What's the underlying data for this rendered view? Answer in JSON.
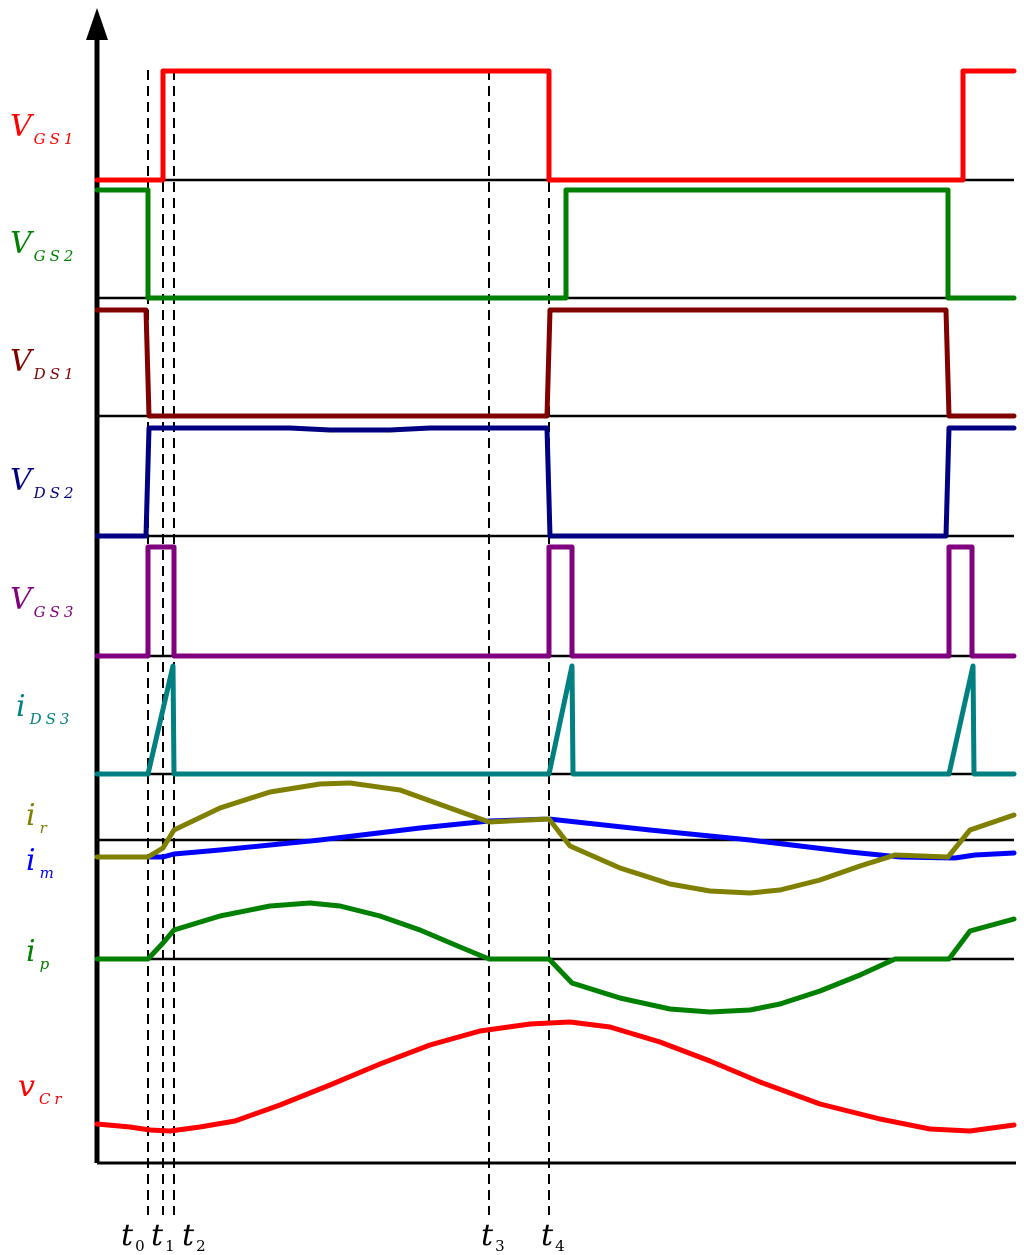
{
  "signals": [
    {
      "id": "vgs1",
      "main": "V",
      "sub": "GS1",
      "color": "#ff0000"
    },
    {
      "id": "vgs2",
      "main": "V",
      "sub": "GS2",
      "color": "#008000"
    },
    {
      "id": "vds1",
      "main": "V",
      "sub": "DS1",
      "color": "#800000"
    },
    {
      "id": "vds2",
      "main": "V",
      "sub": "DS2",
      "color": "#000080"
    },
    {
      "id": "vgs3",
      "main": "V",
      "sub": "GS3",
      "color": "#800080"
    },
    {
      "id": "ids3",
      "main": "i",
      "sub": "DS3",
      "color": "#008080"
    },
    {
      "id": "ir",
      "main": "i",
      "sub": "r",
      "color": "#808000"
    },
    {
      "id": "im",
      "main": "i",
      "sub": "m",
      "color": "#0000ff"
    },
    {
      "id": "ip",
      "main": "i",
      "sub": "p",
      "color": "#008000"
    },
    {
      "id": "vcr",
      "main": "v",
      "sub": "Cr",
      "color": "#ff0000"
    }
  ],
  "time_markers": [
    {
      "main": "t",
      "sub": "0"
    },
    {
      "main": "t",
      "sub": "1"
    },
    {
      "main": "t",
      "sub": "2"
    },
    {
      "main": "t",
      "sub": "3"
    },
    {
      "main": "t",
      "sub": "4"
    }
  ]
}
